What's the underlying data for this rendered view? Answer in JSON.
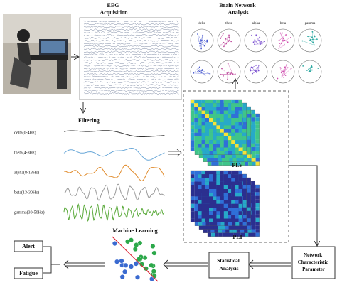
{
  "eeg_acquisition": {
    "title_lines": [
      "EEG",
      "Acquisition"
    ]
  },
  "brain_network": {
    "title_lines": [
      "Brain Network",
      "Analysis"
    ],
    "bands": [
      "delta",
      "theta",
      "alpha",
      "beta",
      "gamma"
    ]
  },
  "filtering": {
    "title": "Filtering",
    "bands": [
      "delta(0-4Hz)",
      "theta(4-8Hz)",
      "alpha(8-13Hz)",
      "beta(13-30Hz)",
      "gamma(30-50Hz)"
    ]
  },
  "connectivity": {
    "plv": "PLV",
    "pli": "PLI"
  },
  "machine_learning": {
    "title": "Machine Learning"
  },
  "statistical_analysis": {
    "title_lines": [
      "Statistical",
      "Analysis"
    ]
  },
  "network_parameter": {
    "title_lines": [
      "Network",
      "Characteristic",
      "Parameter"
    ]
  },
  "outputs": [
    "Alert",
    "Fatigue"
  ]
}
